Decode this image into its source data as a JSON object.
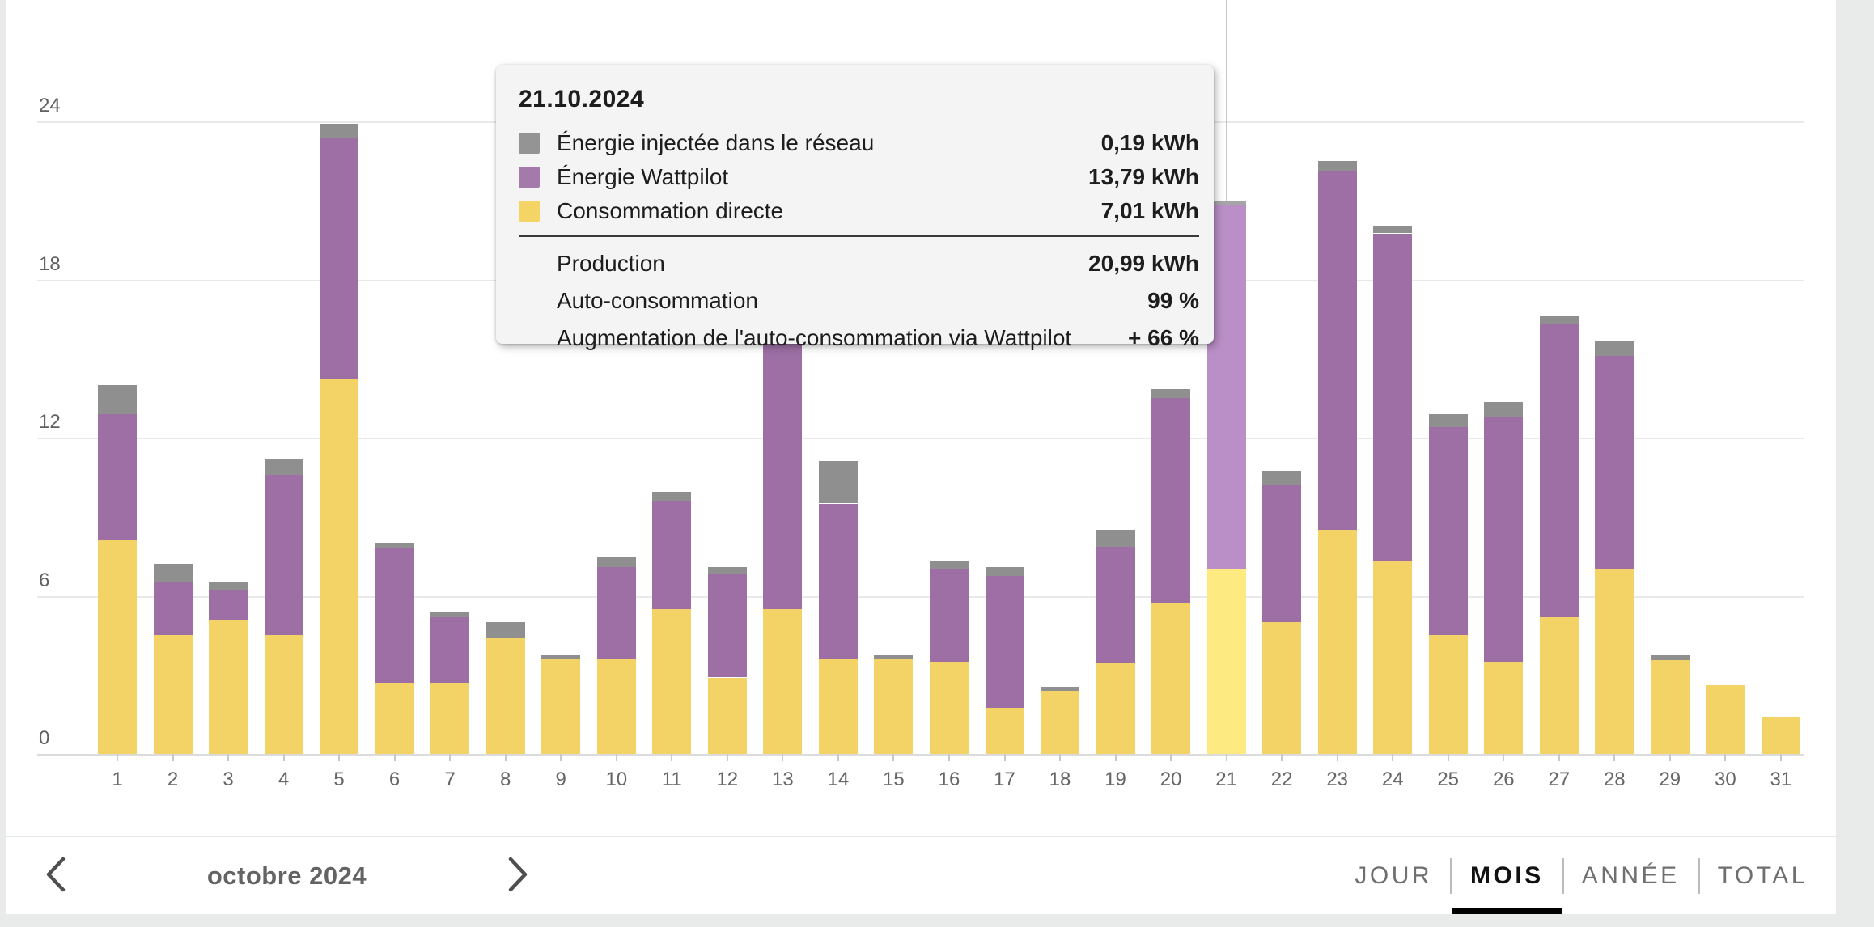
{
  "theme": {
    "page_bg": "#e9eaea",
    "card_bg": "#ffffff",
    "grid_line": "#e9e9e9",
    "axis_label": "#616161",
    "tooltip_bg": "#f4f4f5",
    "tooltip_divider": "#3a3a3a",
    "hover_line": "#c6c6c6",
    "tab_active": "#111111",
    "tab_inactive": "#6f6f6f"
  },
  "tooltip": {
    "date": "21.10.2024",
    "legend_rows": [
      {
        "name": "energie-injectee",
        "label": "Énergie injectée dans le réseau",
        "value": "0,19 kWh",
        "color": "#949494"
      },
      {
        "name": "energie-wattpilot",
        "label": "Énergie Wattpilot",
        "value": "13,79 kWh",
        "color": "#a47aaa"
      },
      {
        "name": "consommation-directe",
        "label": "Consommation directe",
        "value": "7,01 kWh",
        "color": "#f5d466"
      }
    ],
    "summary_rows": [
      {
        "name": "production",
        "label": "Production",
        "value": "20,99 kWh"
      },
      {
        "name": "auto-consommation",
        "label": "Auto-consommation",
        "value": "99 %"
      },
      {
        "name": "augmentation-auto-consommation",
        "label": "Augmentation de l'auto-consommation via Wattpilot",
        "value": "+ 66 %"
      }
    ]
  },
  "chart_data": {
    "type": "bar",
    "stacked": true,
    "unit": "kWh",
    "ylim": [
      0,
      24
    ],
    "y_ticks": [
      0,
      6,
      12,
      18,
      24
    ],
    "grid": true,
    "highlighted_category": "21",
    "categories": [
      "1",
      "2",
      "3",
      "4",
      "5",
      "6",
      "7",
      "8",
      "9",
      "10",
      "11",
      "12",
      "13",
      "14",
      "15",
      "16",
      "17",
      "18",
      "19",
      "20",
      "21",
      "22",
      "23",
      "24",
      "25",
      "26",
      "27",
      "28",
      "29",
      "30",
      "31"
    ],
    "series": [
      {
        "name": "Consommation directe",
        "color": "#f3d266",
        "highlight_color": "#fdeb82",
        "values": [
          8.1,
          4.5,
          5.1,
          4.5,
          14.2,
          2.7,
          2.7,
          4.4,
          3.6,
          3.6,
          5.5,
          2.9,
          5.5,
          3.6,
          3.6,
          3.5,
          1.75,
          2.4,
          3.45,
          5.7,
          7.01,
          5.0,
          8.5,
          7.3,
          4.5,
          3.5,
          5.2,
          7.0,
          3.55,
          2.6,
          1.4
        ]
      },
      {
        "name": "Énergie Wattpilot",
        "color": "#9d6fa4",
        "highlight_color": "#ba8fc7",
        "values": [
          4.8,
          2.0,
          1.1,
          6.1,
          9.2,
          5.1,
          2.5,
          0,
          0,
          3.5,
          4.1,
          3.9,
          10.2,
          5.9,
          0,
          3.5,
          5.0,
          0,
          4.4,
          7.8,
          13.79,
          5.2,
          13.6,
          12.45,
          7.9,
          9.3,
          11.1,
          8.1,
          0,
          0,
          0
        ]
      },
      {
        "name": "Énergie injectée dans le réseau",
        "color": "#8f8f8f",
        "highlight_color": "#a8a5a9",
        "values": [
          1.1,
          0.7,
          0.3,
          0.6,
          0.5,
          0.2,
          0.2,
          0.6,
          0.15,
          0.4,
          0.35,
          0.3,
          0,
          1.6,
          0.15,
          0.3,
          0.35,
          0.15,
          0.65,
          0.35,
          0.19,
          0.55,
          0.4,
          0.3,
          0.5,
          0.55,
          0.3,
          0.55,
          0.2,
          0,
          0
        ]
      }
    ]
  },
  "nav": {
    "month_label": "octobre 2024"
  },
  "tabs": [
    {
      "label": "JOUR",
      "active": false
    },
    {
      "label": "MOIS",
      "active": true
    },
    {
      "label": "ANNÉE",
      "active": false
    },
    {
      "label": "TOTAL",
      "active": false
    }
  ]
}
